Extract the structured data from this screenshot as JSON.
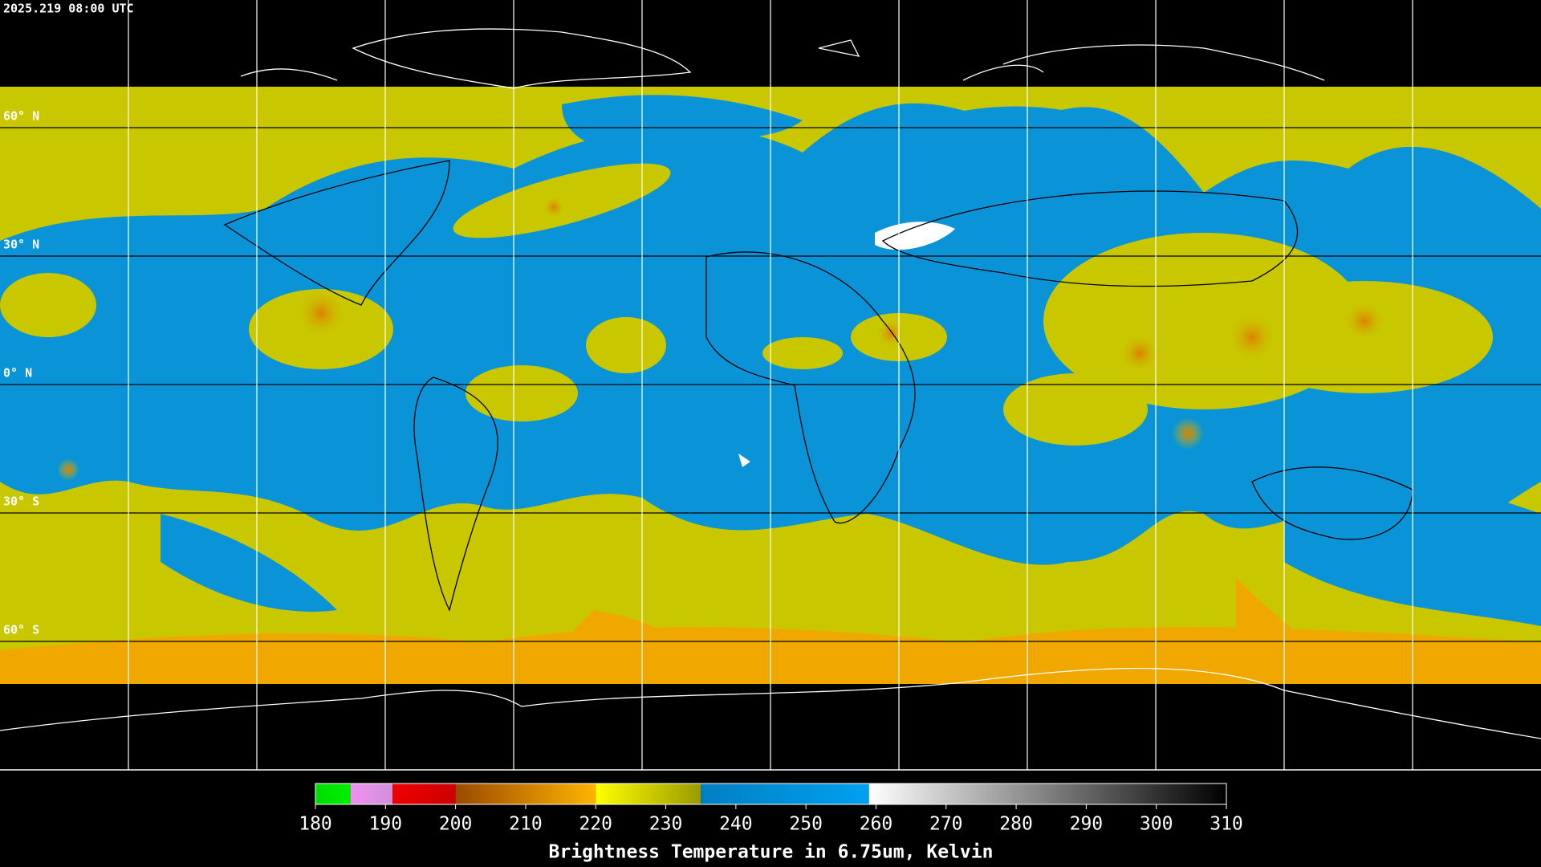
{
  "header": {
    "timestamp": "2025.219 08:00 UTC"
  },
  "latitude_labels": [
    {
      "value": 60,
      "label": "60° N"
    },
    {
      "value": 30,
      "label": "30° N"
    },
    {
      "value": 0,
      "label": "0° N"
    },
    {
      "value": -30,
      "label": "30° S"
    },
    {
      "value": -60,
      "label": "60° S"
    }
  ],
  "colorbar": {
    "title": "Brightness Temperature in 6.75um, Kelvin",
    "range": [
      180,
      310
    ],
    "ticks": [
      180,
      190,
      200,
      210,
      220,
      230,
      240,
      250,
      260,
      270,
      280,
      290,
      300,
      310
    ],
    "segments": [
      {
        "from": 180,
        "to": 185,
        "colors": [
          "#00dd00",
          "#00ee00"
        ]
      },
      {
        "from": 185,
        "to": 191,
        "colors": [
          "#f090f0",
          "#d090d8"
        ]
      },
      {
        "from": 191,
        "to": 200,
        "colors": [
          "#ee0000",
          "#cc0000"
        ]
      },
      {
        "from": 200,
        "to": 220,
        "colors": [
          "#9a4a00",
          "#ffb400"
        ]
      },
      {
        "from": 220,
        "to": 235,
        "colors": [
          "#ffff00",
          "#9a9a00"
        ]
      },
      {
        "from": 235,
        "to": 259,
        "colors": [
          "#0080c0",
          "#00a0f0"
        ]
      },
      {
        "from": 259,
        "to": 310,
        "colors": [
          "#ffffff",
          "#000000"
        ]
      }
    ]
  }
}
